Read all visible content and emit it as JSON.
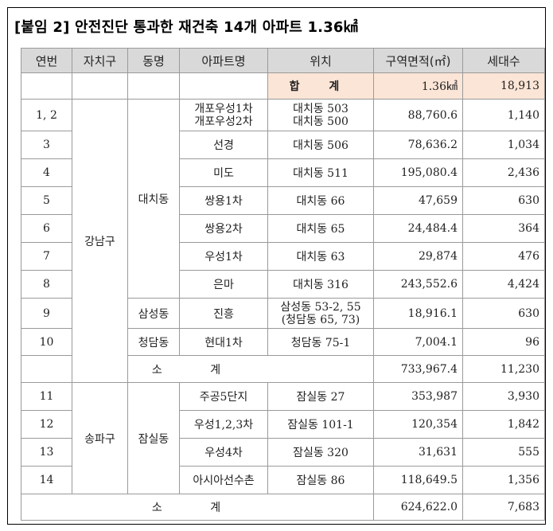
{
  "title": "[붙임 2] 안전진단 통과한 재건축 14개 아파트 1.36㎢",
  "headers": [
    "연번",
    "자치구",
    "동명",
    "아파트명",
    "위치",
    "구역면적(㎡)",
    "세대수"
  ],
  "total": {
    "label": "합 계",
    "area": "1.36㎢",
    "households": "18,913"
  },
  "gangnam": {
    "district": "강남구",
    "dong_daechi": "대치동",
    "dong_samseong": "삼성동",
    "dong_cheongdam": "청담동",
    "rows": [
      {
        "no": "1, 2",
        "apt": [
          "개포우성1차",
          "개포우성2차"
        ],
        "loc": [
          "대치동 503",
          "대치동 500"
        ],
        "area": "88,760.6",
        "households": "1,140"
      },
      {
        "no": "3",
        "apt": [
          "선경"
        ],
        "loc": [
          "대치동 506"
        ],
        "area": "78,636.2",
        "households": "1,034"
      },
      {
        "no": "4",
        "apt": [
          "미도"
        ],
        "loc": [
          "대치동 511"
        ],
        "area": "195,080.4",
        "households": "2,436"
      },
      {
        "no": "5",
        "apt": [
          "쌍용1차"
        ],
        "loc": [
          "대치동 66"
        ],
        "area": "47,659",
        "households": "630"
      },
      {
        "no": "6",
        "apt": [
          "쌍용2차"
        ],
        "loc": [
          "대치동 65"
        ],
        "area": "24,484.4",
        "households": "364"
      },
      {
        "no": "7",
        "apt": [
          "우성1차"
        ],
        "loc": [
          "대치동 63"
        ],
        "area": "29,874",
        "households": "476"
      },
      {
        "no": "8",
        "apt": [
          "은마"
        ],
        "loc": [
          "대치동 316"
        ],
        "area": "243,552.6",
        "households": "4,424"
      },
      {
        "no": "9",
        "apt": [
          "진흥"
        ],
        "loc": [
          "삼성동 53-2, 55",
          "(청담동 65, 73)"
        ],
        "area": "18,916.1",
        "households": "630"
      },
      {
        "no": "10",
        "apt": [
          "현대1차"
        ],
        "loc": [
          "청담동 75-1"
        ],
        "area": "7,004.1",
        "households": "96"
      }
    ],
    "subtotal": {
      "label": "소 계",
      "area": "733,967.4",
      "households": "11,230"
    }
  },
  "songpa": {
    "district": "송파구",
    "dong_jamsil": "잠실동",
    "rows": [
      {
        "no": "11",
        "apt": [
          "주공5단지"
        ],
        "loc": [
          "잠실동 27"
        ],
        "area": "353,987",
        "households": "3,930"
      },
      {
        "no": "12",
        "apt": [
          "우성1,2,3차"
        ],
        "loc": [
          "잠실동 101-1"
        ],
        "area": "120,354",
        "households": "1,842"
      },
      {
        "no": "13",
        "apt": [
          "우성4차"
        ],
        "loc": [
          "잠실동 320"
        ],
        "area": "31,631",
        "households": "555"
      },
      {
        "no": "14",
        "apt": [
          "아시아선수촌"
        ],
        "loc": [
          "잠실동 86"
        ],
        "area": "118,649.5",
        "households": "1,356"
      }
    ],
    "subtotal": {
      "label": "소 계",
      "area": "624,622.0",
      "households": "7,683"
    }
  }
}
